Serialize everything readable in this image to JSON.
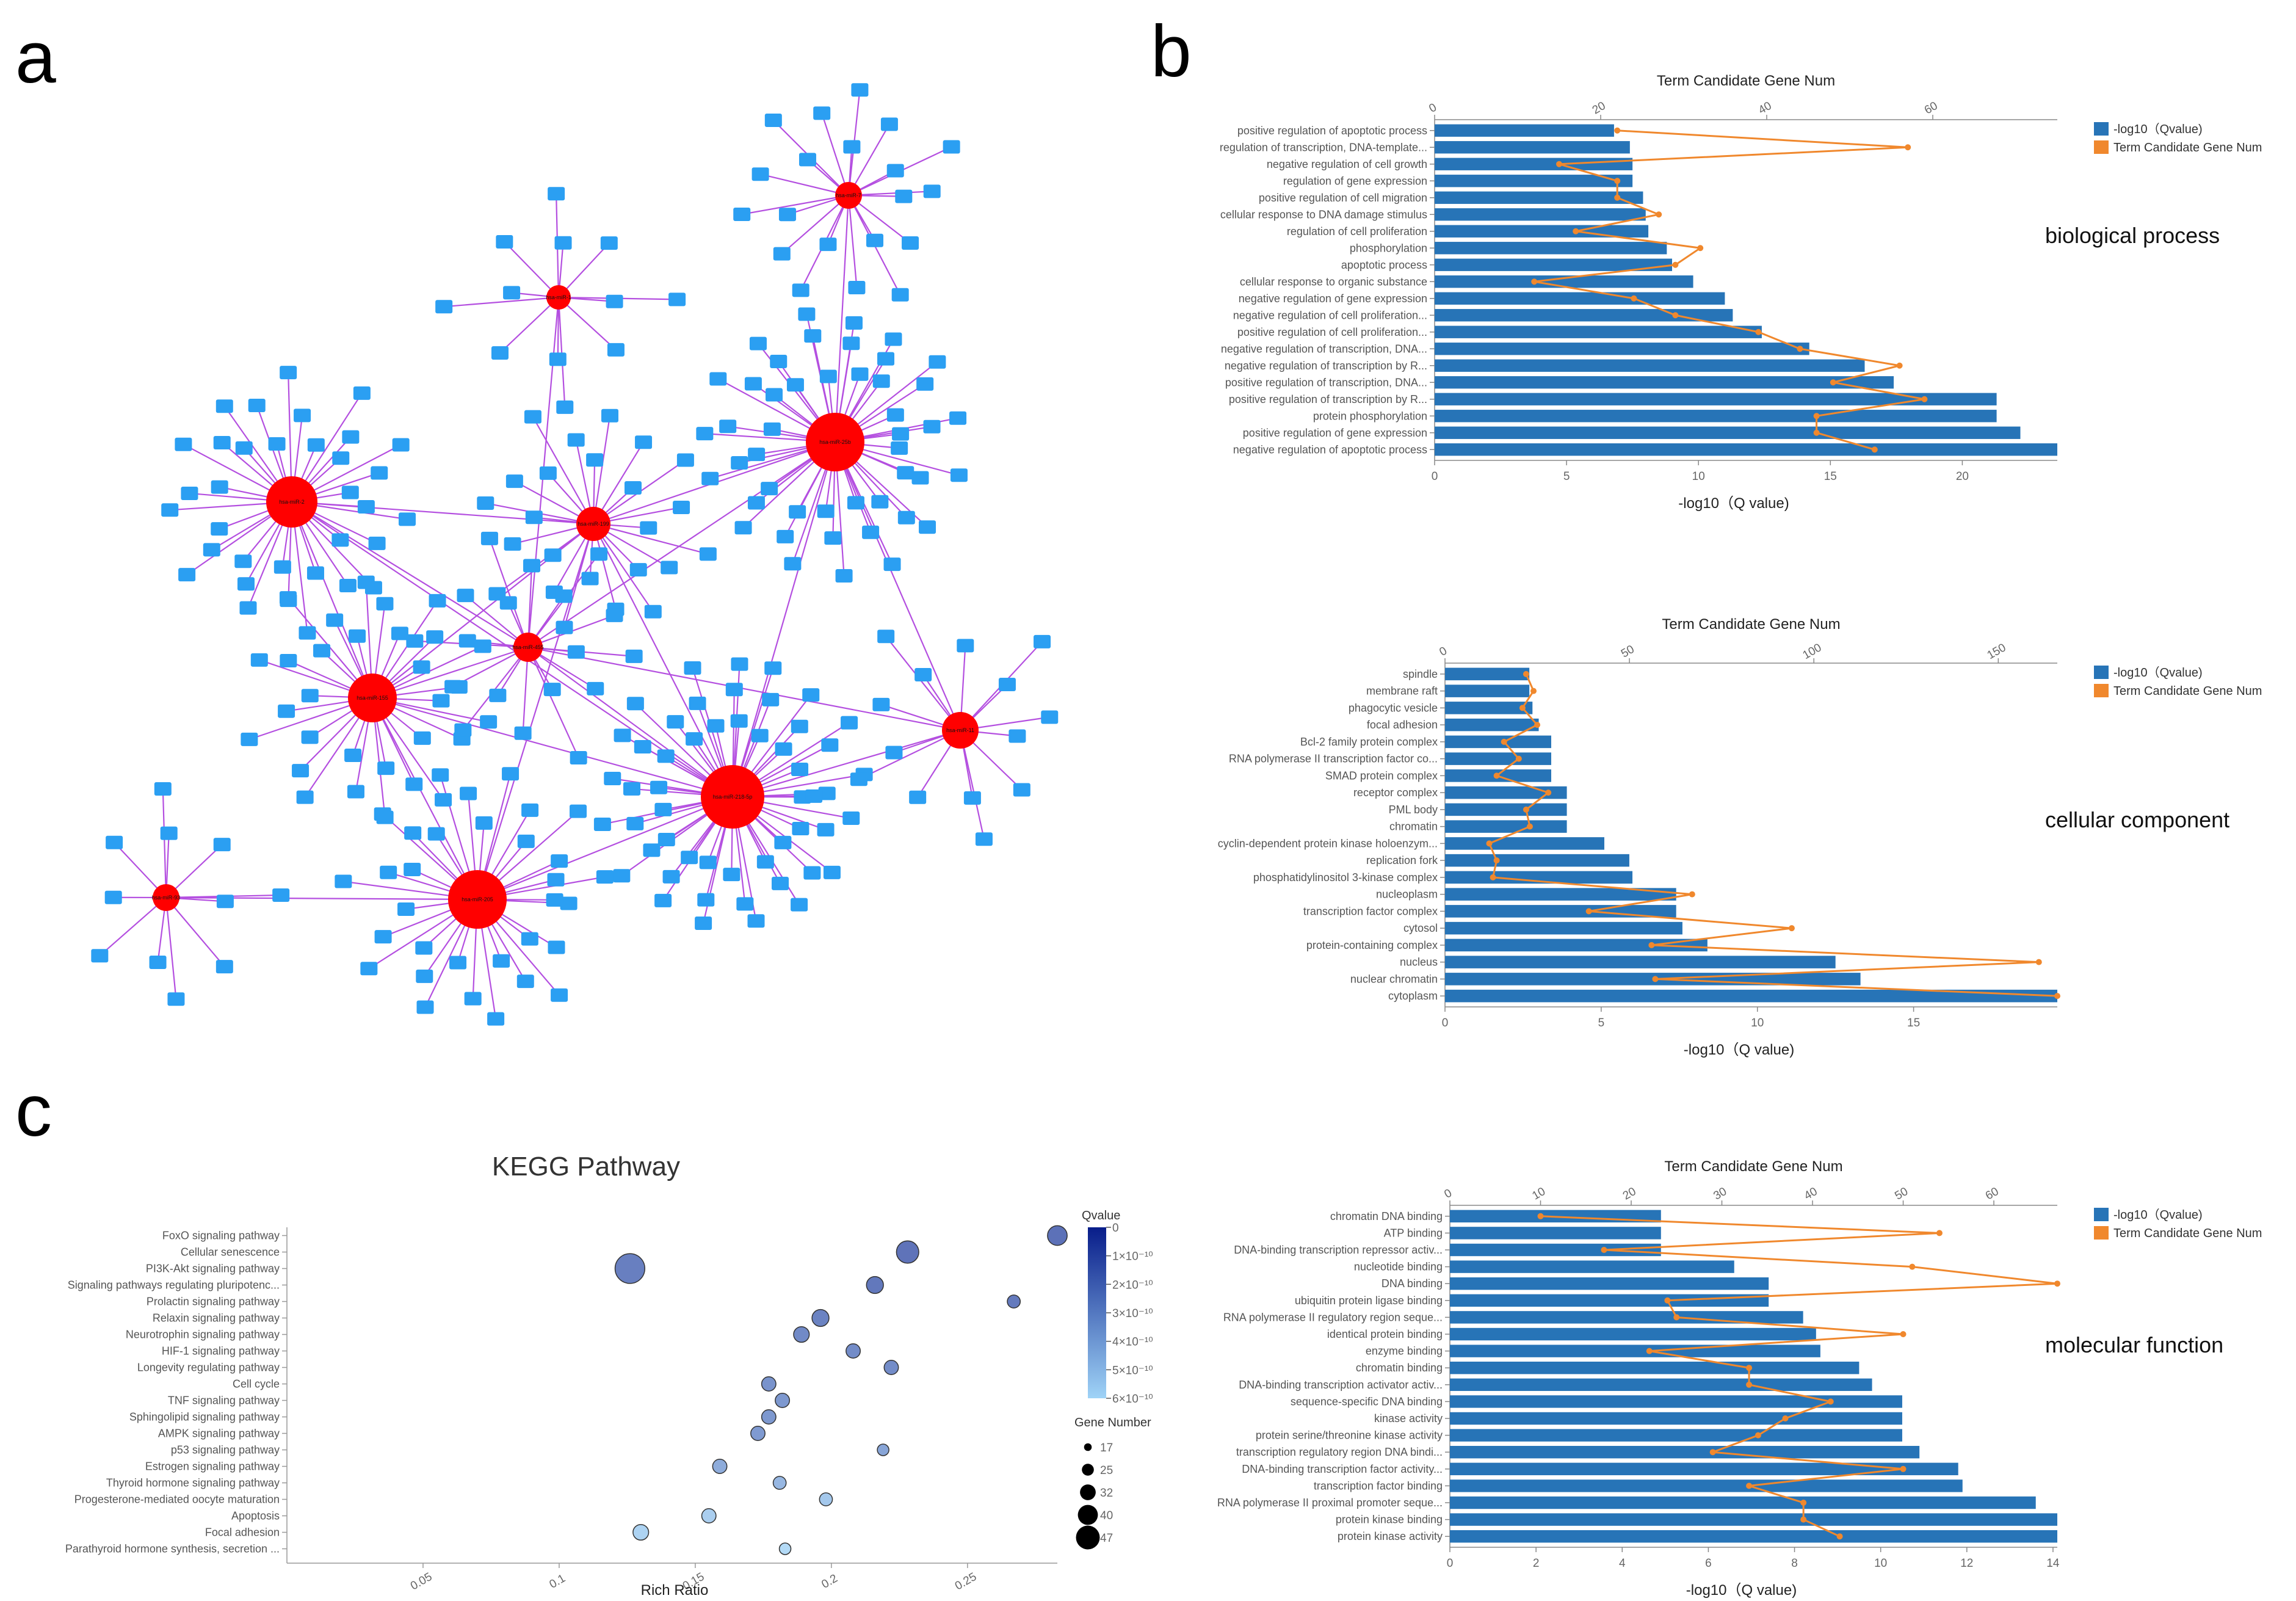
{
  "panels": {
    "a": "a",
    "b": "b",
    "c": "c"
  },
  "colors": {
    "bar": "#2774b7",
    "line": "#f0882d",
    "edge": "#b44fe0",
    "hub": "#ff0000",
    "gene": "#2b9ff2",
    "kegg_dark": "#081d8a",
    "kegg_light": "#9fd3f7"
  },
  "chart_data": [
    {
      "type": "network",
      "panel": "a",
      "hubs": [
        {
          "name": "hsa-miR-1",
          "gene_count": 12
        },
        {
          "name": "hsa-miR-7",
          "gene_count": 20
        },
        {
          "name": "hsa-miR-2",
          "gene_count": 34
        },
        {
          "name": "hsa-miR-25b",
          "gene_count": 46
        },
        {
          "name": "hsa-miR-199",
          "gene_count": 24
        },
        {
          "name": "hsa-miR-155",
          "gene_count": 30
        },
        {
          "name": "hsa-miR-93",
          "gene_count": 12
        },
        {
          "name": "hsa-miR-218-5p",
          "gene_count": 52
        },
        {
          "name": "hsa-miR-455",
          "gene_count": 18
        },
        {
          "name": "hsa-miR-11",
          "gene_count": 14
        },
        {
          "name": "hsa-miR-205",
          "gene_count": 32
        }
      ]
    },
    {
      "type": "bar",
      "panel": "b",
      "orientation": "horizontal",
      "section_label": "biological process",
      "top_axis_title": "Term Candidate Gene Num",
      "xlabel": "-log10（Q value)",
      "legend": [
        "-log10（Qvalue)",
        "Term Candidate Gene Num"
      ],
      "categories": [
        "positive regulation of apoptotic process",
        "regulation of transcription, DNA-template...",
        "negative regulation of cell growth",
        "regulation of gene expression",
        "positive regulation of cell migration",
        "cellular response to DNA damage stimulus",
        "regulation of cell proliferation",
        "phosphorylation",
        "apoptotic process",
        "cellular response to organic substance",
        "negative regulation of gene expression",
        "negative regulation of cell proliferation...",
        "positive regulation of cell proliferation...",
        "negative regulation of transcription, DNA...",
        "negative regulation of transcription by R...",
        "positive regulation of transcription, DNA...",
        "positive regulation of transcription by R...",
        "protein phosphorylation",
        "positive regulation of gene expression",
        "negative regulation of apoptotic process"
      ],
      "qvalue": [
        6.8,
        7.4,
        7.5,
        7.5,
        7.9,
        8.0,
        8.1,
        8.8,
        9.0,
        9.8,
        11.0,
        11.3,
        12.4,
        14.2,
        16.3,
        17.4,
        21.3,
        21.3,
        22.2,
        23.6
      ],
      "gene_num": [
        22,
        57,
        15,
        22,
        22,
        27,
        17,
        32,
        29,
        12,
        24,
        29,
        39,
        44,
        56,
        48,
        59,
        46,
        46,
        53
      ],
      "xlim": [
        0,
        23.6
      ],
      "xticks": [
        0,
        5,
        10,
        15,
        20
      ],
      "top_ticks": [
        0,
        20,
        40,
        60
      ],
      "top_lim": [
        0,
        75
      ]
    },
    {
      "type": "bar",
      "panel": "b",
      "orientation": "horizontal",
      "section_label": "cellular component",
      "top_axis_title": "Term Candidate Gene Num",
      "xlabel": "-log10（Q value)",
      "legend": [
        "-log10（Qvalue)",
        "Term Candidate Gene Num"
      ],
      "categories": [
        "spindle",
        "membrane raft",
        "phagocytic vesicle",
        "focal adhesion",
        "Bcl-2 family protein complex",
        "RNA polymerase II transcription factor co...",
        "SMAD protein complex",
        "receptor complex",
        "PML body",
        "chromatin",
        "cyclin-dependent protein kinase holoenzym...",
        "replication fork",
        "phosphatidylinositol 3-kinase complex",
        "nucleoplasm",
        "transcription factor complex",
        "cytosol",
        "protein-containing complex",
        "nucleus",
        "nuclear chromatin",
        "cytoplasm"
      ],
      "qvalue": [
        2.7,
        2.7,
        2.8,
        3.0,
        3.4,
        3.4,
        3.4,
        3.9,
        3.9,
        3.9,
        5.1,
        5.9,
        6.0,
        7.4,
        7.4,
        7.6,
        8.4,
        12.5,
        13.3,
        19.6
      ],
      "gene_num": [
        22,
        24,
        21,
        25,
        16,
        20,
        14,
        28,
        22,
        23,
        12,
        14,
        13,
        67,
        39,
        94,
        56,
        161,
        57,
        166
      ],
      "xlim": [
        0,
        19.6
      ],
      "xticks": [
        0,
        5,
        10,
        15
      ],
      "top_ticks": [
        0,
        50,
        100,
        150
      ],
      "top_lim": [
        0,
        166
      ]
    },
    {
      "type": "bar",
      "panel": "b",
      "orientation": "horizontal",
      "section_label": "molecular function",
      "top_axis_title": "Term Candidate Gene Num",
      "xlabel": "-log10（Q value)",
      "legend": [
        "-log10（Qvalue)",
        "Term Candidate Gene Num"
      ],
      "categories": [
        "chromatin DNA binding",
        "ATP binding",
        "DNA-binding transcription repressor activ...",
        "nucleotide binding",
        "DNA binding",
        "ubiquitin protein ligase binding",
        "RNA polymerase II regulatory region seque...",
        "identical protein binding",
        "enzyme binding",
        "chromatin binding",
        "DNA-binding transcription activator activ...",
        "sequence-specific DNA binding",
        "kinase activity",
        "protein serine/threonine kinase activity",
        "transcription regulatory region DNA bindi...",
        "DNA-binding transcription factor activity...",
        "transcription factor binding",
        "RNA polymerase II proximal promoter seque...",
        "protein kinase binding",
        "protein kinase activity"
      ],
      "qvalue": [
        4.9,
        4.9,
        4.9,
        6.6,
        7.4,
        7.4,
        8.2,
        8.5,
        8.6,
        9.5,
        9.8,
        10.5,
        10.5,
        10.5,
        10.9,
        11.8,
        11.9,
        13.6,
        14.1,
        14.1
      ],
      "gene_num": [
        10,
        54,
        17,
        51,
        67,
        24,
        25,
        50,
        22,
        33,
        33,
        42,
        37,
        34,
        29,
        50,
        33,
        39,
        39,
        43
      ],
      "xlim": [
        0,
        14.1
      ],
      "xticks": [
        0,
        2,
        4,
        6,
        8,
        10,
        12,
        14
      ],
      "top_ticks": [
        0,
        10,
        20,
        30,
        40,
        50,
        60
      ],
      "top_lim": [
        0,
        67
      ]
    },
    {
      "type": "scatter",
      "panel": "c",
      "title": "KEGG Pathway",
      "xlabel": "Rich Ratio",
      "xticks": [
        0.05,
        0.1,
        0.15,
        0.2,
        0.25
      ],
      "xlim": [
        0,
        0.283
      ],
      "legend_q_title": "Qvalue",
      "legend_q_ticks": [
        "0",
        "1×10⁻¹⁰",
        "2×10⁻¹⁰",
        "3×10⁻¹⁰",
        "4×10⁻¹⁰",
        "5×10⁻¹⁰",
        "6×10⁻¹⁰"
      ],
      "legend_size_title": "Gene Number",
      "legend_sizes": [
        17,
        25,
        32,
        40,
        47
      ],
      "categories": [
        "FoxO signaling pathway",
        "Cellular senescence",
        "PI3K-Akt signaling pathway",
        "Signaling pathways regulating pluripotenc...",
        "Prolactin signaling pathway",
        "Relaxin signaling pathway",
        "Neurotrophin signaling pathway",
        "HIF-1 signaling pathway",
        "Longevity regulating pathway",
        "Cell cycle",
        "TNF signaling pathway",
        "Sphingolipid signaling pathway",
        "AMPK signaling pathway",
        "p53 signaling pathway",
        "Estrogen signaling pathway",
        "Thyroid hormone signaling pathway",
        "Progesterone-mediated oocyte maturation",
        "Apoptosis",
        "Focal adhesion",
        "Parathyroid hormone synthesis, secretion ..."
      ],
      "points": [
        {
          "rich": 0.283,
          "genes": 32,
          "q": 1.2
        },
        {
          "rich": 0.228,
          "genes": 36,
          "q": 1.3
        },
        {
          "rich": 0.126,
          "genes": 47,
          "q": 1.8
        },
        {
          "rich": 0.216,
          "genes": 28,
          "q": 1.5
        },
        {
          "rich": 0.267,
          "genes": 22,
          "q": 1.6
        },
        {
          "rich": 0.196,
          "genes": 28,
          "q": 2.0
        },
        {
          "rich": 0.189,
          "genes": 26,
          "q": 2.3
        },
        {
          "rich": 0.208,
          "genes": 24,
          "q": 2.4
        },
        {
          "rich": 0.222,
          "genes": 24,
          "q": 2.4
        },
        {
          "rich": 0.177,
          "genes": 24,
          "q": 2.7
        },
        {
          "rich": 0.182,
          "genes": 24,
          "q": 2.9
        },
        {
          "rich": 0.177,
          "genes": 24,
          "q": 2.9
        },
        {
          "rich": 0.173,
          "genes": 24,
          "q": 3.0
        },
        {
          "rich": 0.219,
          "genes": 20,
          "q": 3.5
        },
        {
          "rich": 0.159,
          "genes": 24,
          "q": 3.8
        },
        {
          "rich": 0.181,
          "genes": 22,
          "q": 4.3
        },
        {
          "rich": 0.198,
          "genes": 22,
          "q": 5.0
        },
        {
          "rich": 0.155,
          "genes": 24,
          "q": 5.3
        },
        {
          "rich": 0.13,
          "genes": 26,
          "q": 5.5
        },
        {
          "rich": 0.183,
          "genes": 20,
          "q": 5.8
        }
      ]
    }
  ]
}
